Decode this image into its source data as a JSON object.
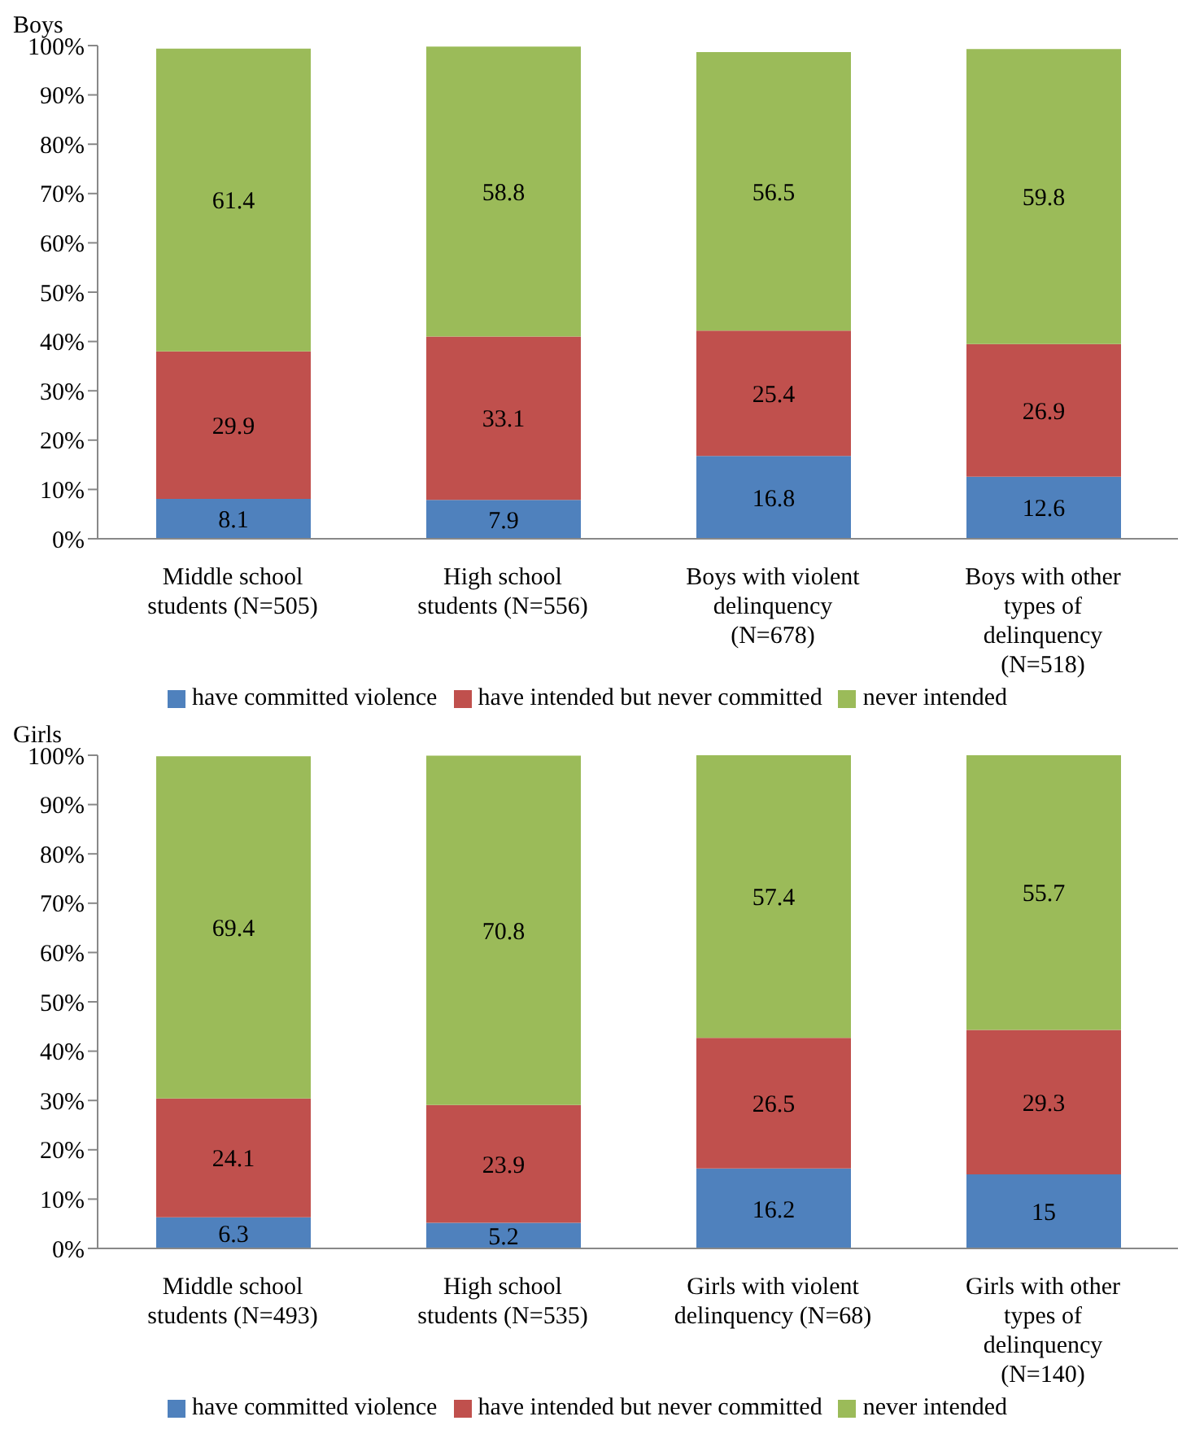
{
  "chart_data": [
    {
      "type": "bar",
      "title": "Boys",
      "stacked": true,
      "data_labels": true,
      "legend": "bottom",
      "grid": false,
      "categories": [
        "Middle school students (N=505)",
        "High school students (N=556)",
        "Boys with violent delinquency (N=678)",
        "Boys with other types of delinquency (N=518)"
      ],
      "ylim": [
        0,
        100
      ],
      "yticks": [
        {
          "value": 0,
          "label": "0%"
        },
        {
          "value": 10,
          "label": "10%"
        },
        {
          "value": 20,
          "label": "20%"
        },
        {
          "value": 30,
          "label": "30%"
        },
        {
          "value": 40,
          "label": "40%"
        },
        {
          "value": 50,
          "label": "50%"
        },
        {
          "value": 60,
          "label": "60%"
        },
        {
          "value": 70,
          "label": "70%"
        },
        {
          "value": 80,
          "label": "80%"
        },
        {
          "value": 90,
          "label": "90%"
        },
        {
          "value": 100,
          "label": "100%"
        }
      ],
      "series": [
        {
          "name": "have committed violence",
          "color": "#4f81bd",
          "values": [
            8.1,
            7.9,
            16.8,
            12.6
          ]
        },
        {
          "name": "have intended but never committed",
          "color": "#c0504d",
          "values": [
            29.9,
            33.1,
            25.4,
            26.9
          ]
        },
        {
          "name": "never intended",
          "color": "#9bbb59",
          "values": [
            61.4,
            58.8,
            56.5,
            59.8
          ]
        }
      ]
    },
    {
      "type": "bar",
      "title": "Girls",
      "stacked": true,
      "data_labels": true,
      "legend": "bottom",
      "grid": false,
      "categories": [
        "Middle school students (N=493)",
        "High school students (N=535)",
        "Girls with violent delinquency (N=68)",
        "Girls with other types of delinquency (N=140)"
      ],
      "ylim": [
        0,
        100
      ],
      "yticks": [
        {
          "value": 0,
          "label": "0%"
        },
        {
          "value": 10,
          "label": "10%"
        },
        {
          "value": 20,
          "label": "20%"
        },
        {
          "value": 30,
          "label": "30%"
        },
        {
          "value": 40,
          "label": "40%"
        },
        {
          "value": 50,
          "label": "50%"
        },
        {
          "value": 60,
          "label": "60%"
        },
        {
          "value": 70,
          "label": "70%"
        },
        {
          "value": 80,
          "label": "80%"
        },
        {
          "value": 90,
          "label": "90%"
        },
        {
          "value": 100,
          "label": "100%"
        }
      ],
      "series": [
        {
          "name": "have committed violence",
          "color": "#4f81bd",
          "values": [
            6.3,
            5.2,
            16.2,
            15
          ]
        },
        {
          "name": "have intended but never committed",
          "color": "#c0504d",
          "values": [
            24.1,
            23.9,
            26.5,
            29.3
          ]
        },
        {
          "name": "never intended",
          "color": "#9bbb59",
          "values": [
            69.4,
            70.8,
            57.4,
            55.7
          ]
        }
      ]
    }
  ]
}
